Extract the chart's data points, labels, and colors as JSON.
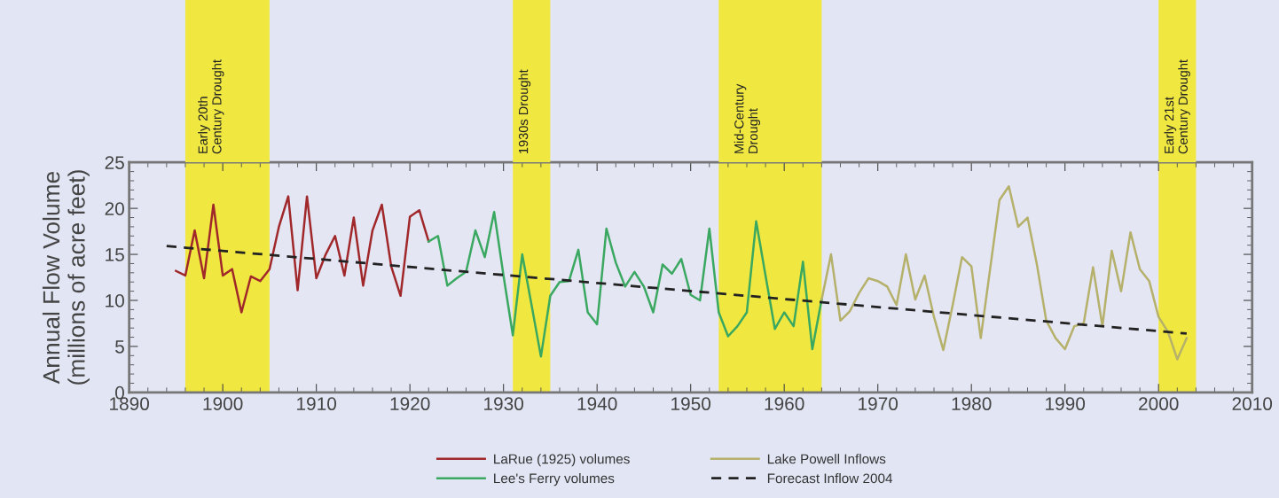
{
  "chart_data": {
    "type": "line",
    "xlabel": null,
    "ylabel": "Annual Flow Volume\n(millions of acre feet)",
    "xlim": [
      1890,
      2010
    ],
    "xticks": [
      1890,
      1900,
      1910,
      1920,
      1930,
      1940,
      1950,
      1960,
      1970,
      1980,
      1990,
      2000,
      2010
    ],
    "ylim": [
      0,
      25
    ],
    "yticks": [
      0,
      5,
      10,
      15,
      20,
      25
    ],
    "grid": false,
    "legend": "bottom",
    "marker": "none",
    "series": [
      {
        "name": "LaRue (1925) volumes",
        "color": "#a0282a",
        "x": [
          1895,
          1896,
          1897,
          1898,
          1899,
          1900,
          1901,
          1902,
          1903,
          1904,
          1905,
          1906,
          1907,
          1908,
          1909,
          1910,
          1911,
          1912,
          1913,
          1914,
          1915,
          1916,
          1917,
          1918,
          1919,
          1920,
          1921,
          1922
        ],
        "values": [
          13.2,
          12.7,
          17.6,
          12.4,
          20.4,
          12.7,
          13.4,
          8.7,
          12.6,
          12.1,
          13.4,
          18.0,
          21.3,
          11.1,
          21.3,
          12.4,
          15.0,
          17.0,
          12.7,
          19.0,
          11.6,
          17.6,
          20.4,
          13.7,
          10.5,
          19.1,
          19.8,
          16.4
        ]
      },
      {
        "name": "Lee's Ferry volumes",
        "color": "#3aa860",
        "x": [
          1922,
          1923,
          1924,
          1925,
          1926,
          1927,
          1928,
          1929,
          1930,
          1931,
          1932,
          1933,
          1934,
          1935,
          1936,
          1937,
          1938,
          1939,
          1940,
          1941,
          1942,
          1943,
          1944,
          1945,
          1946,
          1947,
          1948,
          1949,
          1950,
          1951,
          1952,
          1953,
          1954,
          1955,
          1956,
          1957,
          1958,
          1959,
          1960,
          1961,
          1962,
          1963,
          1964
        ],
        "values": [
          16.4,
          17.0,
          11.6,
          12.4,
          13.1,
          17.6,
          14.7,
          19.6,
          12.7,
          6.2,
          15.0,
          9.5,
          3.9,
          10.5,
          12.0,
          12.1,
          15.5,
          8.7,
          7.4,
          17.8,
          14.1,
          11.5,
          13.1,
          11.5,
          8.7,
          13.9,
          12.9,
          14.5,
          10.6,
          10.0,
          17.8,
          8.7,
          6.1,
          7.2,
          8.7,
          18.6,
          12.7,
          6.9,
          8.7,
          7.2,
          14.2,
          4.7,
          10.1
        ]
      },
      {
        "name": "Lake Powell Inflows",
        "color": "#b5b06a",
        "x": [
          1964,
          1965,
          1966,
          1967,
          1968,
          1969,
          1970,
          1971,
          1972,
          1973,
          1974,
          1975,
          1976,
          1977,
          1978,
          1979,
          1980,
          1981,
          1982,
          1983,
          1984,
          1985,
          1986,
          1987,
          1988,
          1989,
          1990,
          1991,
          1992,
          1993,
          1994,
          1995,
          1996,
          1997,
          1998,
          1999,
          2000,
          2001,
          2002,
          2003
        ],
        "values": [
          10.1,
          15.0,
          7.8,
          8.8,
          10.8,
          12.4,
          12.1,
          11.5,
          9.5,
          15.0,
          10.1,
          12.7,
          8.2,
          4.6,
          9.5,
          14.7,
          13.7,
          5.9,
          13.4,
          20.9,
          22.4,
          18.0,
          19.0,
          13.9,
          7.8,
          5.9,
          4.7,
          7.2,
          7.5,
          13.6,
          7.2,
          15.4,
          11.0,
          17.4,
          13.4,
          12.1,
          8.2,
          6.6,
          3.6,
          5.9
        ]
      },
      {
        "name": "Forecast Inflow 2004",
        "color": "#222222",
        "line_style": "dashed",
        "x": [
          1894,
          2003
        ],
        "values": [
          15.9,
          6.4
        ]
      }
    ],
    "bands": [
      {
        "axis": "x",
        "from": 1896,
        "to": 1905,
        "label": "Early 20th\nCentury Drought",
        "color": "#f0e840"
      },
      {
        "axis": "x",
        "from": 1931,
        "to": 1935,
        "label": "1930s Drought",
        "color": "#f0e840"
      },
      {
        "axis": "x",
        "from": 1953,
        "to": 1964,
        "label": "Mid-Century\nDrought",
        "color": "#f0e840"
      },
      {
        "axis": "x",
        "from": 2000,
        "to": 2004,
        "label": "Early 21st\nCentury Drought",
        "color": "#f0e840"
      }
    ]
  }
}
